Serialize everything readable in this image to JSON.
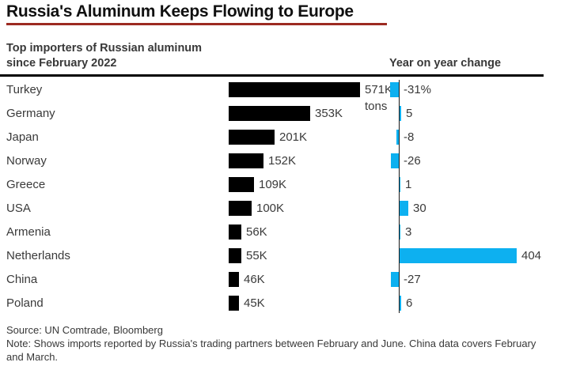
{
  "header": {
    "title": "Russia's Aluminum Keeps Flowing to Europe",
    "subtitle_line1": "Top importers of Russian aluminum",
    "subtitle_line2": "since February 2022",
    "right_header": "Year on year change"
  },
  "chart_data": {
    "type": "bar",
    "orientation": "horizontal",
    "categories": [
      "Turkey",
      "Germany",
      "Japan",
      "Norway",
      "Greece",
      "USA",
      "Armenia",
      "Netherlands",
      "China",
      "Poland"
    ],
    "series": [
      {
        "name": "Imports since February 2022",
        "unit": "K tons",
        "unit_note": "tons",
        "values": [
          571,
          353,
          201,
          152,
          109,
          100,
          56,
          55,
          46,
          45
        ],
        "labels": [
          "571K",
          "353K",
          "201K",
          "152K",
          "109K",
          "100K",
          "56K",
          "55K",
          "46K",
          "45K"
        ],
        "color": "#000000"
      },
      {
        "name": "Year on year change",
        "unit": "%",
        "values": [
          -31,
          5,
          -8,
          -26,
          1,
          30,
          3,
          404,
          -27,
          6
        ],
        "labels": [
          "-31%",
          "5",
          "-8",
          "-26",
          "1",
          "30",
          "3",
          "404",
          "-27",
          "6"
        ],
        "color": "#0db0f0"
      }
    ],
    "legend_position": "none",
    "grid": false
  },
  "accent": {
    "title_rule_color": "#9c2a21"
  },
  "footer": {
    "source": "Source: UN Comtrade, Bloomberg",
    "note": "Note: Shows imports reported by Russia's trading partners between February and June. China data covers February and March."
  }
}
